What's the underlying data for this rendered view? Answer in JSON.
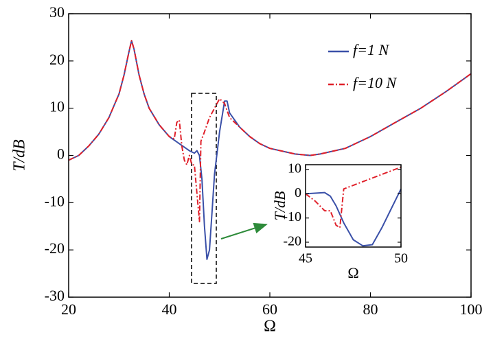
{
  "chart_data": [
    {
      "type": "line",
      "xlabel": "Ω",
      "ylabel": "T/dB",
      "xlim": [
        20,
        100
      ],
      "ylim": [
        -30,
        30
      ],
      "xticks": [
        20,
        40,
        60,
        80,
        100
      ],
      "yticks": [
        -30,
        -20,
        -10,
        0,
        10,
        20,
        30
      ],
      "legend": "upper right",
      "series": [
        {
          "name": "f=1 N",
          "color": "#3a50a8",
          "style": "solid",
          "x": [
            20,
            22,
            24,
            26,
            28,
            30,
            31,
            32,
            32.5,
            33,
            34,
            35,
            36,
            38,
            40,
            42,
            44,
            45,
            45.5,
            46,
            46.5,
            47,
            47.5,
            48,
            48.5,
            49,
            50,
            51,
            51.5,
            52,
            54,
            56,
            58,
            60,
            65,
            68,
            70,
            75,
            80,
            85,
            90,
            95,
            100
          ],
          "values": [
            -1,
            0,
            2,
            4.5,
            8,
            13,
            17,
            22,
            24.3,
            22.5,
            17,
            13,
            10,
            6.5,
            4,
            2.5,
            1,
            0.5,
            1,
            0,
            -5,
            -15,
            -22,
            -20,
            -12,
            -4,
            5,
            11.5,
            11.5,
            9,
            6,
            4,
            2.5,
            1.5,
            0.3,
            0,
            0.3,
            1.5,
            4,
            7,
            10,
            13.5,
            17.3
          ]
        },
        {
          "name": "f=10 N",
          "color": "#e0202a",
          "style": "dashdot",
          "x": [
            20,
            22,
            24,
            26,
            28,
            30,
            31,
            32,
            32.5,
            33,
            34,
            35,
            36,
            38,
            40,
            41,
            41.5,
            42,
            42.5,
            43,
            43.5,
            44,
            44.5,
            45,
            45.5,
            46,
            46.3,
            47,
            48,
            49,
            50,
            51,
            52,
            54,
            56,
            58,
            60,
            65,
            68,
            70,
            75,
            80,
            85,
            90,
            95,
            100
          ],
          "values": [
            -1,
            0,
            2,
            4.5,
            8,
            13,
            17,
            22,
            24.3,
            22.5,
            17,
            13,
            10,
            6.5,
            4,
            3.5,
            7,
            7.5,
            2,
            -1,
            -2,
            0,
            -2,
            -2,
            -8,
            -14,
            3,
            5,
            8,
            10,
            12,
            11,
            8,
            6,
            4,
            2.5,
            1.5,
            0.3,
            0,
            0.3,
            1.5,
            4,
            7,
            10,
            13.5,
            17.3
          ]
        }
      ]
    },
    {
      "type": "line",
      "xlabel": "Ω",
      "ylabel": "T/dB",
      "xlim": [
        45,
        50
      ],
      "ylim": [
        -22,
        12
      ],
      "xticks": [
        45,
        50
      ],
      "yticks": [
        -20,
        -10,
        0,
        10
      ],
      "series": [
        {
          "color": "#3a50a8",
          "style": "solid",
          "x": [
            45,
            46,
            46.3,
            46.6,
            47,
            47.5,
            48,
            48.5,
            49,
            49.5,
            50
          ],
          "values": [
            0,
            0.5,
            -1,
            -5,
            -12,
            -19,
            -21.5,
            -21,
            -14,
            -6,
            2
          ]
        },
        {
          "color": "#e0202a",
          "style": "dashdot",
          "x": [
            45,
            45.5,
            46,
            46.3,
            46.6,
            46.8,
            47,
            48,
            49,
            50
          ],
          "values": [
            0,
            -3,
            -7,
            -7,
            -13,
            -14,
            2,
            5,
            8,
            11
          ]
        }
      ]
    }
  ]
}
